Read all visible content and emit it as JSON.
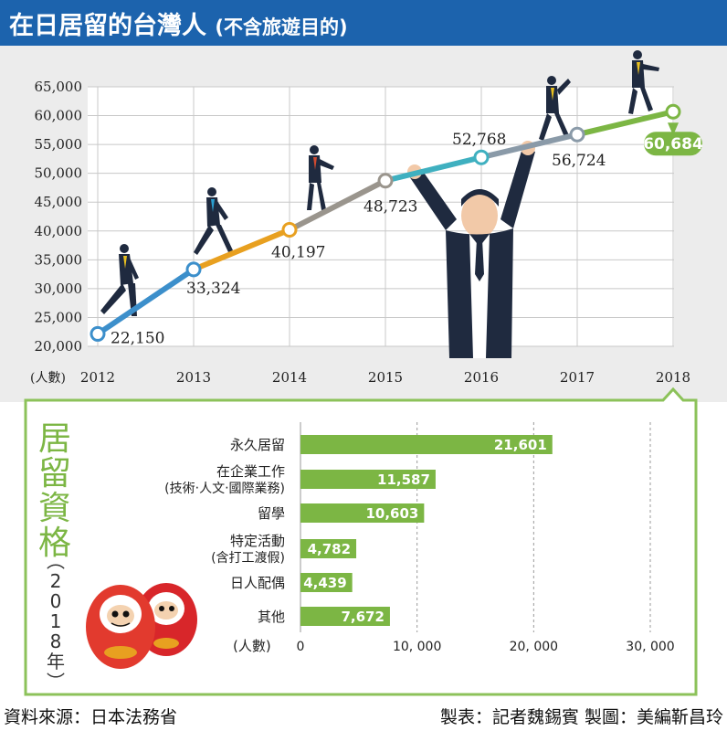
{
  "header": {
    "title": "在日居留的台灣人",
    "subtitle": "(不含旅遊目的)"
  },
  "chart_data": [
    {
      "type": "line",
      "title": "",
      "xlabel": "",
      "ylabel": "(人數)",
      "categories": [
        "2012",
        "2013",
        "2014",
        "2015",
        "2016",
        "2017",
        "2018"
      ],
      "values": [
        22150,
        33324,
        40197,
        48723,
        52768,
        56724,
        60684
      ],
      "labels": [
        "22,150",
        "33,324",
        "40,197",
        "48,723",
        "52,768",
        "56,724",
        "60,684"
      ],
      "yticks": [
        "20,000",
        "25,000",
        "30,000",
        "35,000",
        "40,000",
        "45,000",
        "50,000",
        "55,000",
        "60,000",
        "65,000"
      ],
      "ylim": [
        20000,
        65000
      ],
      "grid": true,
      "segment_colors": [
        "#3c8fcb",
        "#e8a020",
        "#9a958d",
        "#3fb0c0",
        "#8a9aa8",
        "#7cb644"
      ],
      "highlight_color": "#7cb644"
    },
    {
      "type": "bar",
      "orientation": "horizontal",
      "title": "居留資格",
      "subtitle": "(2018年)",
      "ylabel": "(人數)",
      "categories": [
        [
          "永久居留"
        ],
        [
          "在企業工作",
          "(技術‧人文‧國際業務)"
        ],
        [
          "留學"
        ],
        [
          "特定活動",
          "(含打工渡假)"
        ],
        [
          "日人配偶"
        ],
        [
          "其他"
        ]
      ],
      "values": [
        21601,
        11587,
        10603,
        4782,
        4439,
        7672
      ],
      "labels": [
        "21,601",
        "11,587",
        "10,603",
        "4,782",
        "4,439",
        "7,672"
      ],
      "xticks": [
        "0",
        "10, 000",
        "20, 000",
        "30, 000"
      ],
      "xlim": [
        0,
        30000
      ],
      "bar_color": "#7cb644"
    }
  ],
  "footer": {
    "source": "資料來源：日本法務省",
    "credit": "製表：記者魏錫賓 製圖：美編靳昌玲"
  }
}
